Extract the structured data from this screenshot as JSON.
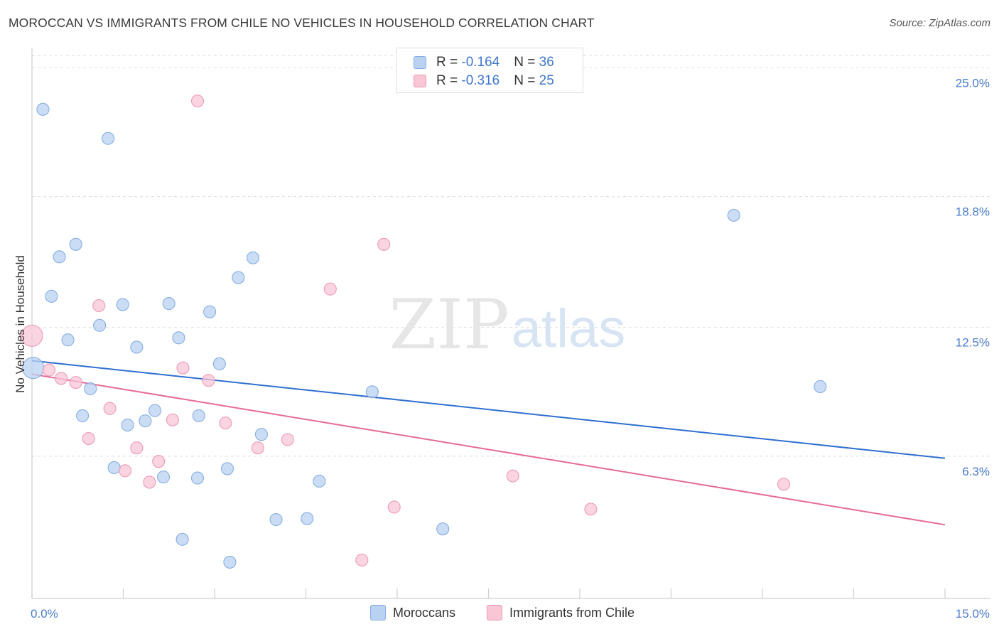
{
  "title": "MOROCCAN VS IMMIGRANTS FROM CHILE NO VEHICLES IN HOUSEHOLD CORRELATION CHART",
  "source": "Source: ZipAtlas.com",
  "watermark": {
    "zip": "ZIP",
    "atlas": "atlas"
  },
  "legend_top": [
    {
      "r_label": "R = ",
      "r_value": "-0.164",
      "n_label": "N = ",
      "n_value": "36",
      "color": "#a9c8f0"
    },
    {
      "r_label": "R = ",
      "r_value": "-0.316",
      "n_label": "N = ",
      "n_value": "25",
      "color": "#f5b8cb"
    }
  ],
  "legend_bottom": [
    {
      "label": "Moroccans",
      "color": "#a9c8f0"
    },
    {
      "label": "Immigrants from Chile",
      "color": "#f5b8cb"
    }
  ],
  "colors": {
    "blue_fill": "#b9d2f2",
    "blue_stroke": "#86aee3",
    "blue_line": "#2f6fd0",
    "pink_fill": "#f8c6d5",
    "pink_stroke": "#ee9ab5",
    "pink_line": "#e56a94",
    "axis_label": "#4a7cc9",
    "grid": "#dedede"
  },
  "chart_data": {
    "type": "scatter",
    "title": "MOROCCAN VS IMMIGRANTS FROM CHILE NO VEHICLES IN HOUSEHOLD CORRELATION CHART",
    "xlabel": "",
    "ylabel": "No Vehicles in Household",
    "xlim": [
      0,
      15
    ],
    "ylim": [
      0,
      25.8
    ],
    "x_tick_labels": [
      "0.0%",
      "15.0%"
    ],
    "y_ticks": [
      6.3,
      12.5,
      18.8,
      25.0
    ],
    "y_tick_labels": [
      "6.3%",
      "12.5%",
      "18.8%",
      "25.0%"
    ],
    "grid": true,
    "legend_position": "top-center",
    "series": [
      {
        "name": "Moroccans",
        "color": "#a9c8f0",
        "points": [
          {
            "x": 0.18,
            "y": 23.0
          },
          {
            "x": 1.25,
            "y": 21.6
          },
          {
            "x": 0.72,
            "y": 16.5
          },
          {
            "x": 0.45,
            "y": 15.9
          },
          {
            "x": 3.63,
            "y": 15.85
          },
          {
            "x": 3.39,
            "y": 14.9
          },
          {
            "x": 0.32,
            "y": 14.0
          },
          {
            "x": 1.49,
            "y": 13.6
          },
          {
            "x": 2.25,
            "y": 13.65
          },
          {
            "x": 2.92,
            "y": 13.25
          },
          {
            "x": 1.11,
            "y": 12.6
          },
          {
            "x": 0.59,
            "y": 11.9
          },
          {
            "x": 2.41,
            "y": 12.0
          },
          {
            "x": 1.72,
            "y": 11.55
          },
          {
            "x": 3.08,
            "y": 10.75
          },
          {
            "x": 0.02,
            "y": 10.55
          },
          {
            "x": 0.96,
            "y": 9.55
          },
          {
            "x": 5.59,
            "y": 9.4
          },
          {
            "x": 12.95,
            "y": 9.65
          },
          {
            "x": 11.53,
            "y": 17.9
          },
          {
            "x": 0.83,
            "y": 8.25
          },
          {
            "x": 2.02,
            "y": 8.5
          },
          {
            "x": 2.74,
            "y": 8.25
          },
          {
            "x": 1.57,
            "y": 7.8
          },
          {
            "x": 1.86,
            "y": 8.0
          },
          {
            "x": 3.77,
            "y": 7.35
          },
          {
            "x": 1.35,
            "y": 5.75
          },
          {
            "x": 2.16,
            "y": 5.3
          },
          {
            "x": 2.72,
            "y": 5.25
          },
          {
            "x": 3.21,
            "y": 5.7
          },
          {
            "x": 4.72,
            "y": 5.1
          },
          {
            "x": 4.01,
            "y": 3.25
          },
          {
            "x": 4.52,
            "y": 3.3
          },
          {
            "x": 6.75,
            "y": 2.8
          },
          {
            "x": 2.47,
            "y": 2.3
          },
          {
            "x": 3.25,
            "y": 1.2
          }
        ]
      },
      {
        "name": "Immigrants from Chile",
        "color": "#f5b8cb",
        "points": [
          {
            "x": 2.72,
            "y": 23.4
          },
          {
            "x": 5.78,
            "y": 16.5
          },
          {
            "x": 4.9,
            "y": 14.35
          },
          {
            "x": 1.1,
            "y": 13.55
          },
          {
            "x": 0.0,
            "y": 12.1
          },
          {
            "x": 0.28,
            "y": 10.45
          },
          {
            "x": 0.48,
            "y": 10.05
          },
          {
            "x": 0.72,
            "y": 9.85
          },
          {
            "x": 2.48,
            "y": 10.55
          },
          {
            "x": 2.9,
            "y": 9.95
          },
          {
            "x": 1.28,
            "y": 8.6
          },
          {
            "x": 2.31,
            "y": 8.05
          },
          {
            "x": 3.18,
            "y": 7.9
          },
          {
            "x": 0.93,
            "y": 7.15
          },
          {
            "x": 1.72,
            "y": 6.7
          },
          {
            "x": 3.71,
            "y": 6.7
          },
          {
            "x": 4.2,
            "y": 7.1
          },
          {
            "x": 2.08,
            "y": 6.05
          },
          {
            "x": 1.53,
            "y": 5.6
          },
          {
            "x": 1.93,
            "y": 5.05
          },
          {
            "x": 7.9,
            "y": 5.35
          },
          {
            "x": 12.35,
            "y": 4.95
          },
          {
            "x": 5.95,
            "y": 3.85
          },
          {
            "x": 9.18,
            "y": 3.75
          },
          {
            "x": 5.42,
            "y": 1.3
          }
        ]
      }
    ],
    "trendlines": [
      {
        "name": "Moroccans",
        "x": [
          0,
          15
        ],
        "y": [
          10.9,
          6.2
        ]
      },
      {
        "name": "Immigrants from Chile",
        "x": [
          0,
          15
        ],
        "y": [
          10.25,
          3.0
        ]
      }
    ]
  }
}
